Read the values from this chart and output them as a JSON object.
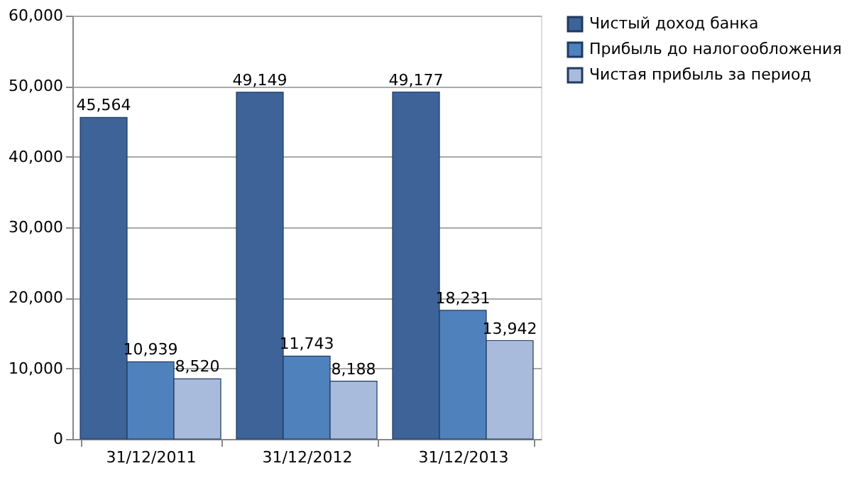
{
  "chart_data": {
    "type": "bar",
    "categories": [
      "31/12/2011",
      "31/12/2012",
      "31/12/2013"
    ],
    "series": [
      {
        "name": "Чистый доход банка",
        "color": "#3d6398",
        "values": [
          45564,
          49149,
          49177
        ],
        "value_labels": [
          "45,564",
          "49,149",
          "49,177"
        ]
      },
      {
        "name": "Прибыль до налогообложения",
        "color": "#4f81bd",
        "values": [
          10939,
          11743,
          18231
        ],
        "value_labels": [
          "10,939",
          "11,743",
          "18,231"
        ]
      },
      {
        "name": "Чистая прибыль за период",
        "color": "#a9bbdc",
        "values": [
          8520,
          8188,
          13942
        ],
        "value_labels": [
          "8,520",
          "8,188",
          "13,942"
        ]
      }
    ],
    "ylim": [
      0,
      60000
    ],
    "yticks": [
      0,
      {
        "value": 10000,
        "label": "10,000"
      },
      {
        "value": 20000,
        "label": "20,000"
      },
      {
        "value": 30000,
        "label": "30,000"
      },
      {
        "value": 40000,
        "label": "40,000"
      },
      {
        "value": 50000,
        "label": "50,000"
      },
      {
        "value": 60000,
        "label": "60,000"
      }
    ],
    "grid": "y",
    "legend": "right"
  }
}
